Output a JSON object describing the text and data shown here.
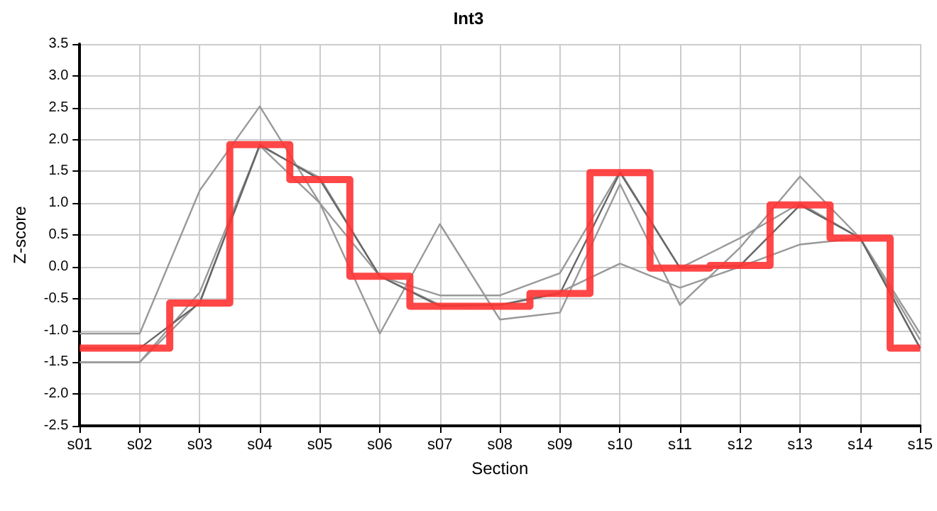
{
  "chart_data": {
    "type": "line",
    "title": "Int3",
    "xlabel": "Section",
    "ylabel": "Z-score",
    "categories": [
      "s01",
      "s02",
      "s03",
      "s04",
      "s05",
      "s06",
      "s07",
      "s08",
      "s09",
      "s10",
      "s11",
      "s12",
      "s13",
      "s14",
      "s15"
    ],
    "ylim": [
      -2.5,
      3.5
    ],
    "yticks": [
      {
        "value": -2.5,
        "label": "-2.5"
      },
      {
        "value": -2,
        "label": "-2.0"
      },
      {
        "value": -1.5,
        "label": "-1.5"
      },
      {
        "value": -1,
        "label": "-1.0"
      },
      {
        "value": -0.5,
        "label": "-0.5"
      },
      {
        "value": 0,
        "label": "0.0"
      },
      {
        "value": 0.5,
        "label": "0.5"
      },
      {
        "value": 1,
        "label": "1.0"
      },
      {
        "value": 1.5,
        "label": "1.5"
      },
      {
        "value": 2,
        "label": "2.0"
      },
      {
        "value": 2.5,
        "label": "2.5"
      },
      {
        "value": 3,
        "label": "3.0"
      },
      {
        "value": 3.5,
        "label": "3.5"
      }
    ],
    "grid": true,
    "marker": "none",
    "line_style": "solid",
    "series": [
      {
        "color": "#999999",
        "values": [
          -1.05,
          -1.05,
          1.2,
          2.52,
          1.0,
          -1.05,
          0.67,
          -0.83,
          -0.72,
          1.3,
          -0.6,
          0.3,
          1.42,
          0.45,
          -1.05
        ]
      },
      {
        "color": "#999999",
        "values": [
          -1.5,
          -1.5,
          -0.4,
          1.9,
          1.0,
          -0.15,
          -0.45,
          -0.45,
          -0.1,
          1.5,
          -0.02,
          0.45,
          1.0,
          0.45,
          -1.15
        ]
      },
      {
        "color": "#999999",
        "values": [
          -1.5,
          -1.5,
          -0.55,
          1.9,
          1.4,
          -0.15,
          -0.6,
          -0.6,
          -0.4,
          0.05,
          -0.33,
          0.0,
          0.35,
          0.45,
          -1.28
        ]
      },
      {
        "color": "#666666",
        "values": [
          -1.28,
          -1.28,
          -0.57,
          1.92,
          1.37,
          -0.15,
          -0.62,
          -0.6,
          -0.42,
          1.48,
          -0.02,
          0.02,
          0.97,
          0.45,
          -1.28
        ]
      },
      {
        "type": "step",
        "color": "#ff3333",
        "values": [
          -1.28,
          -1.28,
          -0.57,
          1.92,
          1.37,
          -0.15,
          -0.62,
          -0.62,
          -0.42,
          1.48,
          -0.02,
          0.02,
          0.97,
          0.45,
          -1.28
        ]
      }
    ]
  }
}
